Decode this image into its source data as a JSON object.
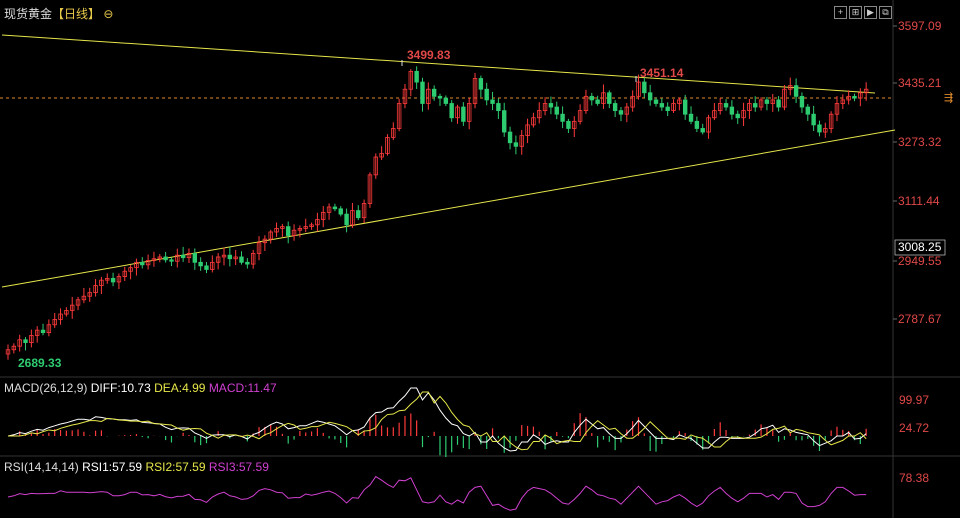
{
  "header": {
    "title": "现货黄金",
    "period": "【日线】",
    "zoom_icon": "zoom-out-icon"
  },
  "toolbar": {
    "buttons": [
      {
        "icon": "add-icon",
        "label": "+"
      },
      {
        "icon": "expand-icon",
        "label": "⊞"
      },
      {
        "icon": "play-icon",
        "label": "▶"
      },
      {
        "icon": "fullscreen-icon",
        "label": "⧉"
      }
    ]
  },
  "colors": {
    "up": "#ff3b3b",
    "down": "#2ecc71",
    "trendline": "#e6e64a",
    "price_line": "#e08a2a",
    "axis_text": "#e04848",
    "magenta": "#d040d0",
    "dif": "#ffffff",
    "dea": "#e6e64a"
  },
  "price_axis": {
    "ticks": [
      "3597.09",
      "3435.21",
      "3273.32",
      "3111.44",
      "3008.25",
      "2949.55",
      "2787.67"
    ],
    "current": "3008.25"
  },
  "price_labels": {
    "high": "3499.83",
    "high2": "3451.14",
    "low": "2689.33"
  },
  "macd": {
    "title": "MACD(26,12,9)",
    "diff": "DIFF:10.73",
    "dea": "DEA:4.99",
    "macd": "MACD:11.47",
    "ticks": [
      "99.97",
      "24.72"
    ]
  },
  "rsi": {
    "title": "RSI(14,14,14)",
    "rsi1": "RSI1:57.59",
    "rsi2": "RSI2:57.59",
    "rsi3": "RSI3:57.59",
    "ticks": [
      "78.38"
    ]
  },
  "chart_data": {
    "type": "candlestick",
    "title": "现货黄金【日线】",
    "ylim": [
      2689.33,
      3597.09
    ],
    "closes": [
      2690,
      2700,
      2718,
      2710,
      2730,
      2745,
      2738,
      2760,
      2775,
      2790,
      2800,
      2815,
      2830,
      2840,
      2850,
      2870,
      2885,
      2890,
      2880,
      2895,
      2910,
      2920,
      2935,
      2928,
      2940,
      2945,
      2950,
      2942,
      2938,
      2955,
      2948,
      2960,
      2935,
      2925,
      2915,
      2935,
      2950,
      2955,
      2945,
      2950,
      2935,
      2930,
      2960,
      2990,
      3000,
      3020,
      3030,
      3035,
      3010,
      3025,
      3030,
      3035,
      3040,
      3055,
      3075,
      3090,
      3085,
      3070,
      3040,
      3080,
      3060,
      3100,
      3180,
      3230,
      3240,
      3285,
      3310,
      3380,
      3420,
      3470,
      3440,
      3380,
      3420,
      3400,
      3395,
      3380,
      3340,
      3370,
      3330,
      3380,
      3450,
      3420,
      3390,
      3380,
      3360,
      3300,
      3270,
      3260,
      3290,
      3320,
      3340,
      3360,
      3380,
      3370,
      3350,
      3330,
      3310,
      3330,
      3360,
      3400,
      3390,
      3380,
      3410,
      3380,
      3360,
      3350,
      3370,
      3400,
      3440,
      3410,
      3390,
      3380,
      3370,
      3360,
      3380,
      3390,
      3350,
      3330,
      3310,
      3300,
      3340,
      3360,
      3380,
      3370,
      3350,
      3340,
      3360,
      3380,
      3370,
      3390,
      3380,
      3390,
      3370,
      3420,
      3430,
      3400,
      3370,
      3350,
      3320,
      3300,
      3310,
      3350,
      3380,
      3390,
      3400,
      3395,
      3410,
      3420
    ]
  }
}
